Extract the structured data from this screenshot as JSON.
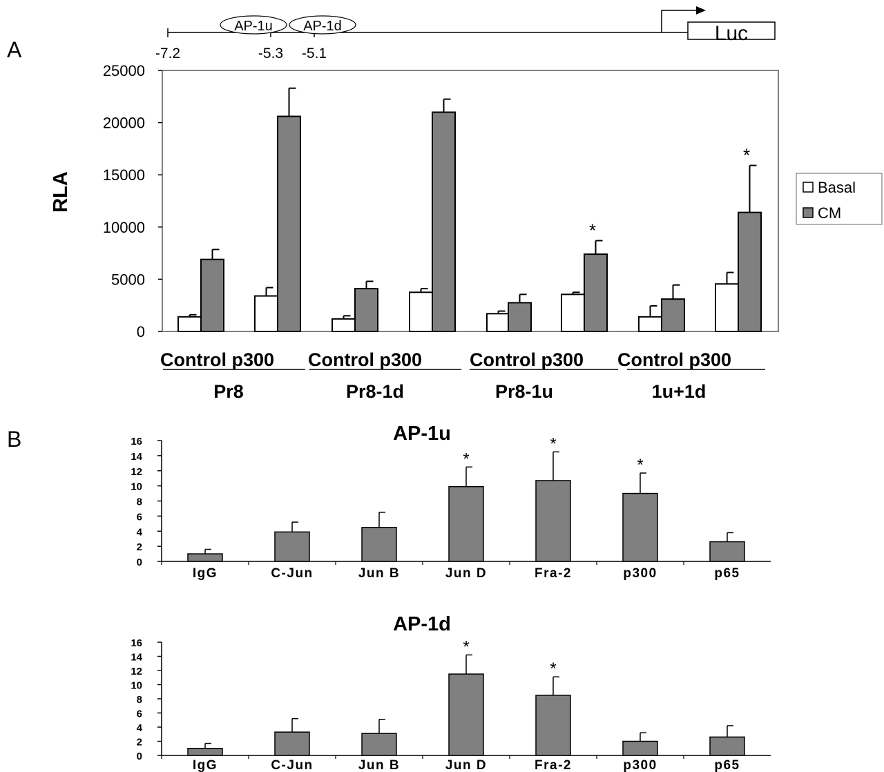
{
  "figure": {
    "panel_a_letter": "A",
    "panel_b_letter": "B"
  },
  "promoter": {
    "elements": [
      "AP-1u",
      "AP-1d"
    ],
    "positions": [
      "-7.2",
      "-5.3",
      "-5.1"
    ],
    "reporter": "Luc"
  },
  "colors": {
    "basal": "#ffffff",
    "cm": "#808080",
    "stroke": "#000000"
  },
  "chart_data": [
    {
      "type": "bar",
      "panel": "A",
      "title": "",
      "ylabel": "RLA",
      "xlabel": "",
      "ylim": [
        0,
        25000
      ],
      "yticks": [
        0,
        5000,
        10000,
        15000,
        20000,
        25000
      ],
      "categories": [
        "Control",
        "p300",
        "Control",
        "p300",
        "Control",
        "p300",
        "Control",
        "p300"
      ],
      "category_label_rows": [
        "Control p300",
        "Control  p300",
        "Control p300",
        "Control p300"
      ],
      "groups": [
        "Pr8",
        "Pr8-1d",
        "Pr8-1u",
        "1u+1d"
      ],
      "series": [
        {
          "name": "Basal",
          "values": [
            1400,
            3400,
            1200,
            3750,
            1700,
            3550,
            1400,
            4550
          ],
          "errors": [
            200,
            800,
            300,
            350,
            250,
            200,
            1050,
            1100
          ]
        },
        {
          "name": "CM",
          "values": [
            6900,
            20600,
            4100,
            21000,
            2750,
            7400,
            3100,
            11400
          ],
          "errors": [
            950,
            2700,
            700,
            1250,
            800,
            1300,
            1350,
            4500
          ]
        }
      ],
      "significance": [
        "",
        "",
        "",
        "",
        "",
        "*",
        "",
        "*"
      ],
      "legend": [
        "Basal",
        "CM"
      ],
      "legend_position": "right",
      "grid": false
    },
    {
      "type": "bar",
      "panel": "B",
      "title": "AP-1u",
      "ylabel": "",
      "xlabel": "",
      "ylim": [
        0,
        16
      ],
      "yticks": [
        0,
        2,
        4,
        6,
        8,
        10,
        12,
        14,
        16
      ],
      "categories": [
        "IgG",
        "C-Jun",
        "Jun B",
        "Jun D",
        "Fra-2",
        "p300",
        "p65"
      ],
      "values": [
        1.0,
        3.9,
        4.5,
        9.9,
        10.7,
        9.0,
        2.6
      ],
      "errors": [
        0.6,
        1.3,
        2.0,
        2.6,
        3.8,
        2.7,
        1.2
      ],
      "significance": [
        "",
        "",
        "",
        "*",
        "*",
        "*",
        ""
      ],
      "grid": false
    },
    {
      "type": "bar",
      "panel": "B",
      "title": "AP-1d",
      "ylabel": "",
      "xlabel": "",
      "ylim": [
        0,
        16
      ],
      "yticks": [
        0,
        2,
        4,
        6,
        8,
        10,
        12,
        14,
        16
      ],
      "categories": [
        "IgG",
        "C-Jun",
        "Jun B",
        "Jun D",
        "Fra-2",
        "p300",
        "p65"
      ],
      "values": [
        1.0,
        3.3,
        3.1,
        11.5,
        8.5,
        2.0,
        2.6
      ],
      "errors": [
        0.7,
        1.9,
        2.0,
        2.7,
        2.6,
        1.2,
        1.6
      ],
      "significance": [
        "",
        "",
        "",
        "*",
        "*",
        "",
        ""
      ],
      "grid": false
    }
  ]
}
